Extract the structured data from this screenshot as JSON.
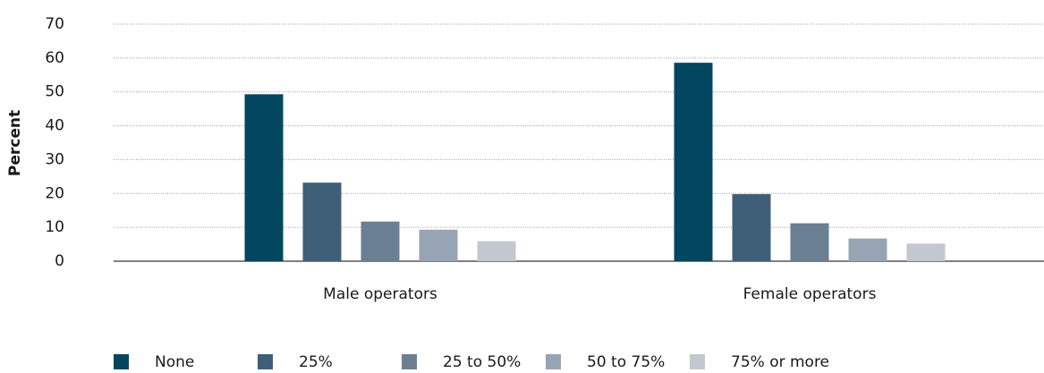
{
  "chart_data": {
    "type": "bar",
    "y_label": "Percent",
    "categories": [
      "Male operators",
      "Female operators"
    ],
    "series": [
      {
        "name": "None",
        "color": "#03465f",
        "values": [
          49.3,
          58.6
        ]
      },
      {
        "name": "25%",
        "color": "#3f5f78",
        "values": [
          23.2,
          19.8
        ]
      },
      {
        "name": "25 to 50%",
        "color": "#6b7f93",
        "values": [
          11.7,
          11.2
        ]
      },
      {
        "name": "50 to 75%",
        "color": "#97a4b3",
        "values": [
          9.3,
          6.7
        ]
      },
      {
        "name": "75% or more",
        "color": "#c3c7cf",
        "values": [
          5.9,
          5.2
        ]
      }
    ],
    "ylim": [
      0,
      70
    ],
    "yticks": [
      0,
      10,
      20,
      30,
      40,
      50,
      60,
      70
    ],
    "grid": true
  }
}
